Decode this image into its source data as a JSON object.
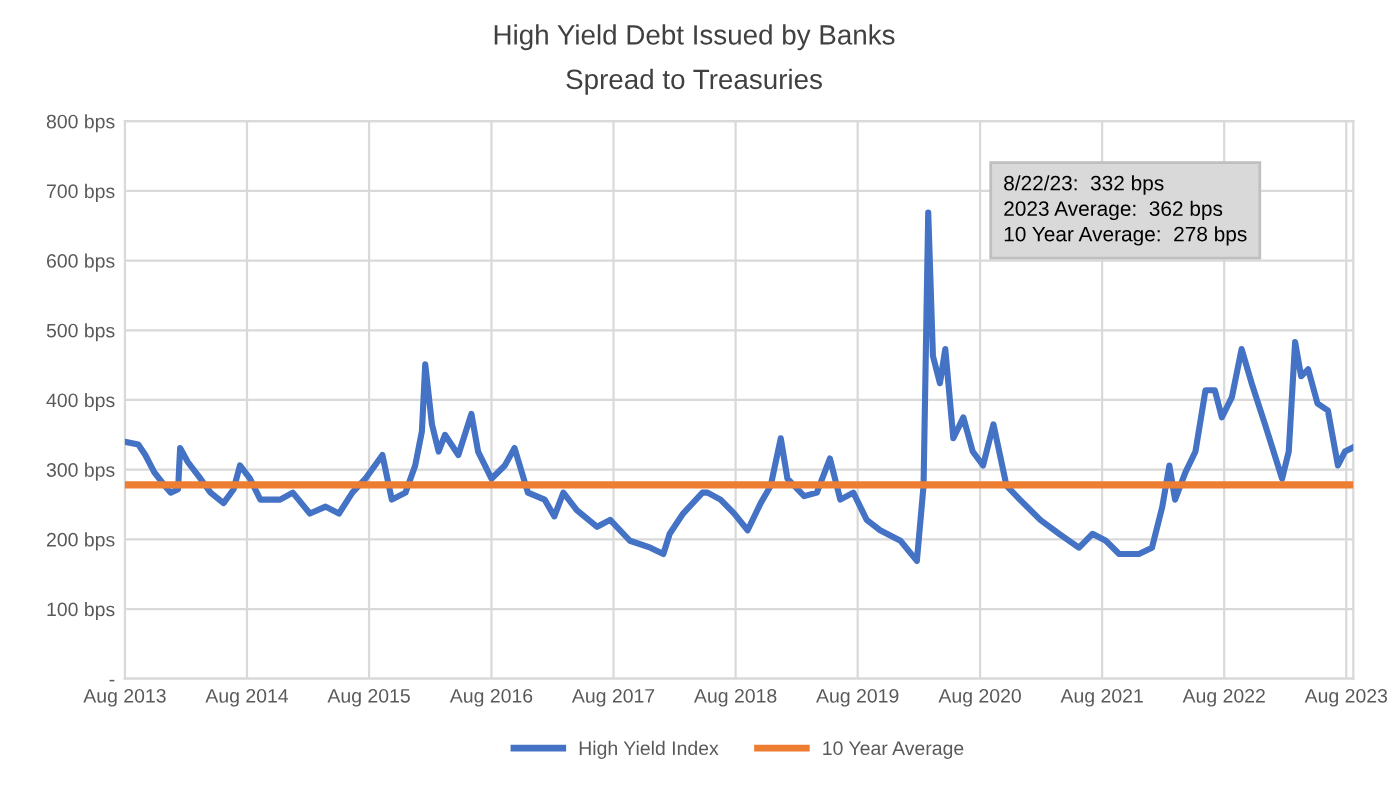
{
  "chart_data": {
    "type": "line",
    "title": "High Yield Debt Issued by Banks",
    "subtitle": "Spread to Treasuries",
    "series": [
      {
        "name": "High Yield Index",
        "color": "#4472c4",
        "x": [
          "2013-08-01",
          "2013-09-10",
          "2013-10-01",
          "2013-10-28",
          "2013-11-28",
          "2013-12-16",
          "2014-01-07",
          "2014-01-13",
          "2014-02-05",
          "2014-03-15",
          "2014-04-14",
          "2014-05-23",
          "2014-06-22",
          "2014-07-11",
          "2014-08-10",
          "2014-09-10",
          "2014-11-08",
          "2014-12-16",
          "2015-02-05",
          "2015-03-24",
          "2015-05-03",
          "2015-06-12",
          "2015-07-21",
          "2015-09-10",
          "2015-10-08",
          "2015-11-18",
          "2015-12-17",
          "2016-01-06",
          "2016-01-16",
          "2016-02-05",
          "2016-02-25",
          "2016-03-15",
          "2016-04-24",
          "2016-06-02",
          "2016-06-22",
          "2016-08-01",
          "2016-09-10",
          "2016-10-09",
          "2016-11-18",
          "2017-01-07",
          "2017-02-05",
          "2017-03-04",
          "2017-04-13",
          "2017-06-13",
          "2017-07-22",
          "2017-09-19",
          "2017-11-19",
          "2017-12-28",
          "2018-01-16",
          "2018-02-25",
          "2018-04-24",
          "2018-05-09",
          "2018-06-17",
          "2018-07-28",
          "2018-09-06",
          "2018-10-15",
          "2018-11-14",
          "2018-12-14",
          "2019-01-03",
          "2019-02-22",
          "2019-04-01",
          "2019-05-10",
          "2019-06-10",
          "2019-07-19",
          "2019-08-28",
          "2019-10-07",
          "2019-12-07",
          "2020-01-25",
          "2020-02-14",
          "2020-02-28",
          "2020-03-13",
          "2020-04-03",
          "2020-04-19",
          "2020-05-13",
          "2020-06-12",
          "2020-07-10",
          "2020-08-10",
          "2020-09-10",
          "2020-10-19",
          "2020-11-28",
          "2021-01-28",
          "2021-03-25",
          "2021-05-24",
          "2021-07-03",
          "2021-08-12",
          "2021-09-21",
          "2021-11-19",
          "2021-12-28",
          "2022-01-28",
          "2022-02-18",
          "2022-03-07",
          "2022-04-07",
          "2022-05-07",
          "2022-06-06",
          "2022-07-04",
          "2022-07-25",
          "2022-08-24",
          "2022-09-22",
          "2022-10-22",
          "2022-12-01",
          "2023-01-21",
          "2023-02-10",
          "2023-03-01",
          "2023-03-19",
          "2023-04-09",
          "2023-05-07",
          "2023-06-07",
          "2023-07-07",
          "2023-07-28",
          "2023-08-22"
        ],
        "values": [
          340,
          336,
          321,
          296,
          277,
          267,
          272,
          331,
          311,
          287,
          267,
          252,
          272,
          306,
          287,
          257,
          257,
          267,
          237,
          247,
          237,
          267,
          287,
          321,
          257,
          267,
          306,
          355,
          451,
          365,
          326,
          350,
          321,
          380,
          326,
          287,
          306,
          331,
          267,
          257,
          233,
          267,
          242,
          218,
          228,
          198,
          188,
          179,
          208,
          237,
          267,
          267,
          257,
          237,
          213,
          252,
          277,
          345,
          287,
          262,
          267,
          316,
          257,
          267,
          228,
          213,
          198,
          169,
          277,
          669,
          463,
          424,
          473,
          345,
          375,
          326,
          306,
          365,
          277,
          257,
          228,
          208,
          188,
          208,
          198,
          179,
          179,
          188,
          247,
          306,
          257,
          296,
          326,
          414,
          414,
          375,
          404,
          473,
          424,
          365,
          287,
          326,
          483,
          434,
          444,
          395,
          385,
          306,
          326,
          332
        ]
      },
      {
        "name": "10 Year Average",
        "color": "#ed7d31",
        "x": [
          "2013-08-01",
          "2023-08-22"
        ],
        "values": [
          278,
          278
        ]
      }
    ],
    "xlim": [
      "2013-08-01",
      "2023-08-22"
    ],
    "xticks": [
      {
        "value": "2013-08-01",
        "label": "Aug 2013"
      },
      {
        "value": "2014-08-01",
        "label": "Aug 2014"
      },
      {
        "value": "2015-08-01",
        "label": "Aug 2015"
      },
      {
        "value": "2016-08-01",
        "label": "Aug 2016"
      },
      {
        "value": "2017-08-01",
        "label": "Aug 2017"
      },
      {
        "value": "2018-08-01",
        "label": "Aug 2018"
      },
      {
        "value": "2019-08-01",
        "label": "Aug 2019"
      },
      {
        "value": "2020-08-01",
        "label": "Aug 2020"
      },
      {
        "value": "2021-08-01",
        "label": "Aug 2021"
      },
      {
        "value": "2022-08-01",
        "label": "Aug 2022"
      },
      {
        "value": "2023-08-01",
        "label": "Aug 2023"
      }
    ],
    "ylim": [
      0,
      800
    ],
    "yticks": [
      {
        "value": 0,
        "label": "-"
      },
      {
        "value": 100,
        "label": "100 bps"
      },
      {
        "value": 200,
        "label": "200 bps"
      },
      {
        "value": 300,
        "label": "300 bps"
      },
      {
        "value": 400,
        "label": "400 bps"
      },
      {
        "value": 500,
        "label": "500 bps"
      },
      {
        "value": 600,
        "label": "600 bps"
      },
      {
        "value": 700,
        "label": "700 bps"
      },
      {
        "value": 800,
        "label": "800 bps"
      }
    ],
    "annotations": [
      "8/22/23:  332 bps",
      "2023 Average:  362 bps",
      "10 Year Average:  278 bps"
    ],
    "grid": true,
    "legend": "bottom",
    "marker": "none",
    "line_style": "solid"
  }
}
